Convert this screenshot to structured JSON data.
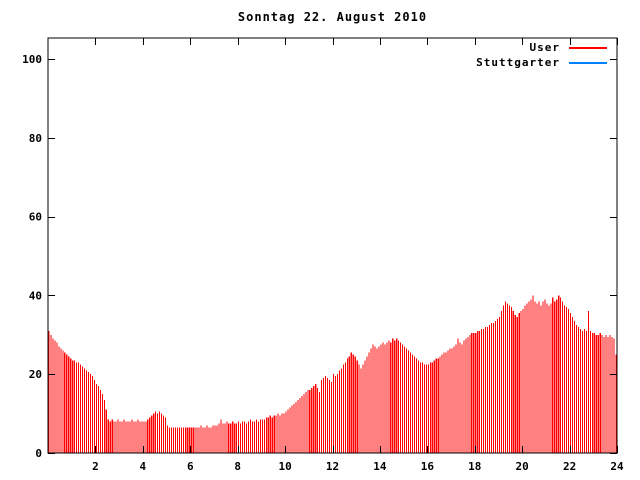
{
  "colors": {
    "background": "#ffffff",
    "axis": "#000000",
    "text": "#000000",
    "user_red": "#ff0000",
    "stuttgarter_blue": "#0080ff"
  },
  "chart_data": {
    "type": "bar",
    "title": "Sonntag 22. August 2010",
    "xlabel": "",
    "ylabel": "",
    "xlim": [
      0,
      24
    ],
    "ylim": [
      0,
      105
    ],
    "xticks": [
      2,
      4,
      6,
      8,
      10,
      12,
      14,
      16,
      18,
      20,
      22,
      24
    ],
    "yticks": [
      0,
      20,
      40,
      60,
      80,
      100
    ],
    "grid": false,
    "legend_position": "top-right-inside",
    "bar_style": "impulses",
    "interval_minutes": 5,
    "series": [
      {
        "name": "User",
        "color": "#ff0000",
        "values": [
          31,
          30,
          29,
          28.5,
          28,
          27,
          26.5,
          26,
          25.5,
          25,
          24.5,
          24,
          23.5,
          23.5,
          23,
          23,
          22.5,
          22,
          21.5,
          21,
          20.5,
          20,
          19.5,
          18.5,
          17.5,
          17,
          16,
          15,
          13.5,
          11,
          8.5,
          8,
          8.5,
          8,
          8,
          8.5,
          8,
          8,
          8.5,
          8,
          8,
          8,
          8.5,
          8,
          8,
          8.5,
          8,
          8,
          8,
          8,
          8.5,
          9,
          9.5,
          10,
          10.5,
          10,
          10.5,
          10,
          9.5,
          9,
          7,
          6.5,
          6.5,
          6.5,
          6.5,
          6.5,
          6.5,
          6.5,
          6.5,
          6.5,
          6.5,
          6.5,
          6.5,
          6.5,
          6.5,
          6.5,
          6.5,
          7,
          6.5,
          6.5,
          7,
          6.5,
          6.5,
          7,
          7,
          7,
          7.5,
          8.5,
          7.5,
          7.5,
          8,
          7.5,
          7.5,
          8,
          7.5,
          7.5,
          8,
          7.5,
          8,
          8,
          7.5,
          8,
          8.5,
          8,
          8,
          8.5,
          8,
          8.5,
          8.5,
          8.5,
          9,
          9,
          9.5,
          9,
          9.5,
          9.5,
          10,
          9.5,
          10,
          10,
          10.5,
          11,
          11.5,
          12,
          12.5,
          13,
          13.5,
          14,
          14.5,
          15,
          15.5,
          16,
          16,
          16.5,
          17,
          17.5,
          16.5,
          15.5,
          18.5,
          19,
          19.5,
          19,
          18.5,
          18,
          20,
          19.5,
          20,
          21,
          21.5,
          22.5,
          23,
          24,
          24.5,
          25.5,
          25,
          24.5,
          23.5,
          22.5,
          21.5,
          22.5,
          23.5,
          24.5,
          25.5,
          26.5,
          27.5,
          27,
          26.5,
          27,
          27.5,
          28,
          27.5,
          28,
          28.5,
          28,
          29,
          28.5,
          29,
          28.5,
          28,
          27.5,
          27,
          26.5,
          26,
          25.5,
          25,
          24.5,
          24,
          23.5,
          23,
          23,
          22.5,
          22.5,
          22.5,
          23,
          23,
          23.5,
          24,
          24,
          24.5,
          25,
          25.5,
          25.5,
          26,
          26.5,
          26.5,
          27,
          27.5,
          29,
          28,
          27.5,
          28.5,
          29,
          29.5,
          30,
          30.5,
          30.5,
          30.5,
          31,
          31,
          31.5,
          31.5,
          32,
          32,
          32.5,
          33,
          33,
          33.5,
          34,
          34.5,
          36,
          37.5,
          38.5,
          38,
          37.5,
          37,
          36,
          35,
          34.5,
          35.5,
          36,
          36.5,
          37.5,
          38,
          38.5,
          39,
          40,
          38.5,
          38,
          38.5,
          37.5,
          38.5,
          39,
          38,
          37.5,
          38,
          39.5,
          38.5,
          39,
          40,
          39.5,
          38.5,
          37.5,
          37,
          36.5,
          35.5,
          34.5,
          33.5,
          32.5,
          32,
          31.5,
          31,
          31.5,
          31,
          36,
          31,
          30.5,
          30.5,
          30,
          30,
          30.5,
          30,
          29.5,
          30,
          29.5,
          30,
          29.5,
          29,
          25
        ]
      },
      {
        "name": "Stuttgarter",
        "color": "#0080ff",
        "values": []
      }
    ]
  }
}
